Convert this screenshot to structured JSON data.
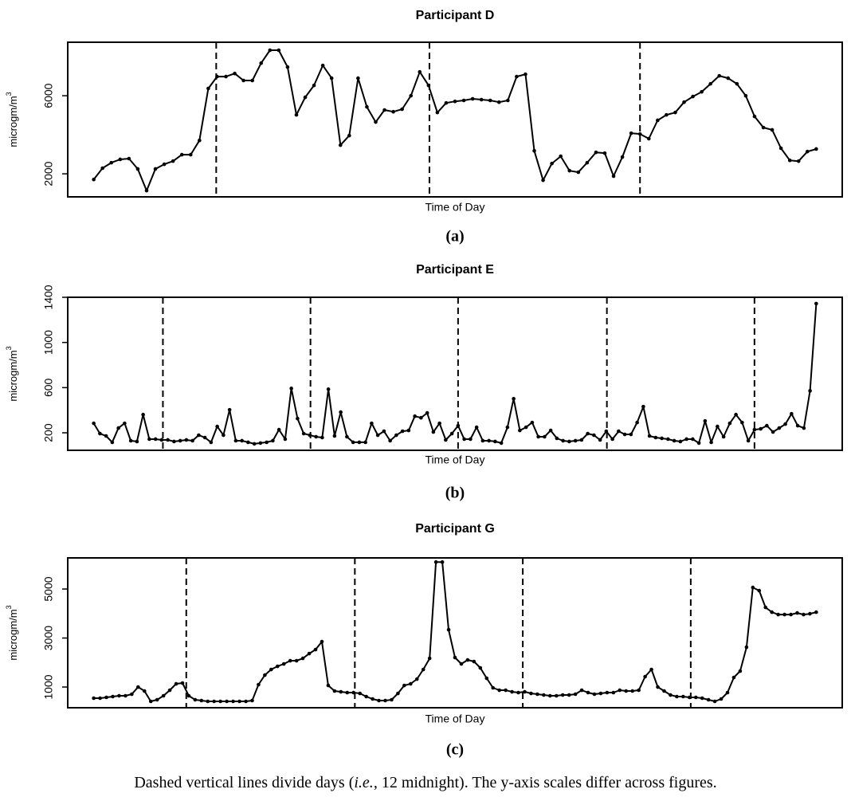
{
  "chart_data": [
    {
      "type": "line",
      "title": "Participant D",
      "xlabel": "Time of Day",
      "ylabel": "microgm/m",
      "ylabel_sup": "3",
      "panel_label": "(a)",
      "color": "#000000",
      "ylim": [
        820,
        8740
      ],
      "yticks": [
        2000,
        6000
      ],
      "day_breaks": [
        13.9,
        38.1,
        62.0
      ],
      "values": [
        1710,
        2290,
        2570,
        2740,
        2780,
        2250,
        1140,
        2250,
        2490,
        2650,
        2980,
        2980,
        3710,
        6370,
        6980,
        6980,
        7140,
        6780,
        6780,
        7670,
        8330,
        8330,
        7470,
        5020,
        5920,
        6530,
        7550,
        6900,
        3470,
        3960,
        6900,
        5430,
        4650,
        5270,
        5180,
        5310,
        6000,
        7220,
        6530,
        5140,
        5630,
        5710,
        5760,
        5840,
        5800,
        5760,
        5670,
        5760,
        6980,
        7100,
        3180,
        1670,
        2530,
        2900,
        2160,
        2080,
        2570,
        3100,
        3060,
        1880,
        2860,
        4080,
        4040,
        3800,
        4740,
        5020,
        5140,
        5670,
        5960,
        6200,
        6610,
        7020,
        6900,
        6610,
        6000,
        4940,
        4370,
        4250,
        3310,
        2690,
        2650,
        3140,
        3270
      ]
    },
    {
      "type": "line",
      "title": "Participant E",
      "xlabel": "Time of Day",
      "ylabel": "microgm/m",
      "ylabel_sup": "3",
      "panel_label": "(b)",
      "color": "#000000",
      "ylim": [
        45,
        1400
      ],
      "yticks": [
        200,
        600,
        1000,
        1400
      ],
      "day_breaks": [
        11.2,
        35.1,
        59.0,
        83.1,
        107.0
      ],
      "values": [
        284,
        193,
        172,
        116,
        242,
        284,
        130,
        123,
        361,
        144,
        144,
        137,
        137,
        123,
        130,
        137,
        130,
        179,
        158,
        116,
        256,
        179,
        404,
        130,
        130,
        116,
        102,
        109,
        116,
        130,
        228,
        144,
        593,
        326,
        193,
        179,
        165,
        158,
        586,
        172,
        383,
        165,
        116,
        116,
        116,
        284,
        179,
        214,
        130,
        179,
        214,
        221,
        347,
        333,
        376,
        207,
        284,
        137,
        193,
        263,
        144,
        144,
        249,
        130,
        130,
        123,
        109,
        249,
        502,
        221,
        249,
        291,
        165,
        165,
        221,
        151,
        130,
        123,
        130,
        137,
        193,
        179,
        137,
        214,
        144,
        214,
        186,
        186,
        291,
        432,
        172,
        158,
        151,
        144,
        130,
        123,
        144,
        144,
        109,
        305,
        116,
        256,
        165,
        284,
        361,
        291,
        130,
        228,
        235,
        263,
        207,
        242,
        277,
        368,
        263,
        242,
        572,
        1344
      ]
    },
    {
      "type": "line",
      "title": "Participant G",
      "xlabel": "Time of Day",
      "ylabel": "microgm/m",
      "ylabel_sup": "3",
      "panel_label": "(c)",
      "color": "#000000",
      "ylim": [
        155,
        6270
      ],
      "yticks": [
        1000,
        3000,
        5000
      ],
      "day_breaks": [
        14.6,
        41.2,
        67.7,
        94.2
      ],
      "values": [
        545,
        545,
        578,
        610,
        643,
        643,
        708,
        1000,
        838,
        415,
        480,
        643,
        870,
        1130,
        1163,
        643,
        480,
        448,
        415,
        415,
        415,
        415,
        415,
        415,
        415,
        448,
        1098,
        1488,
        1715,
        1845,
        1943,
        2073,
        2073,
        2170,
        2365,
        2528,
        2853,
        1065,
        838,
        805,
        773,
        773,
        740,
        610,
        513,
        448,
        448,
        480,
        740,
        1065,
        1130,
        1325,
        1715,
        2170,
        6100,
        6100,
        3340,
        2203,
        1943,
        2105,
        2040,
        1780,
        1358,
        968,
        870,
        870,
        805,
        773,
        805,
        740,
        708,
        675,
        643,
        643,
        675,
        675,
        708,
        870,
        773,
        708,
        740,
        773,
        773,
        870,
        838,
        838,
        870,
        1423,
        1715,
        1000,
        838,
        675,
        610,
        610,
        578,
        578,
        545,
        480,
        415,
        513,
        773,
        1390,
        1650,
        2625,
        5063,
        4933,
        4250,
        4055,
        3958,
        3958,
        3958,
        4023,
        3958,
        3990,
        4055
      ]
    }
  ],
  "caption": {
    "before": "Dashed vertical lines divide days (",
    "italic": "i.e.",
    "after": ", 12 midnight). The y-axis scales differ across figures."
  }
}
